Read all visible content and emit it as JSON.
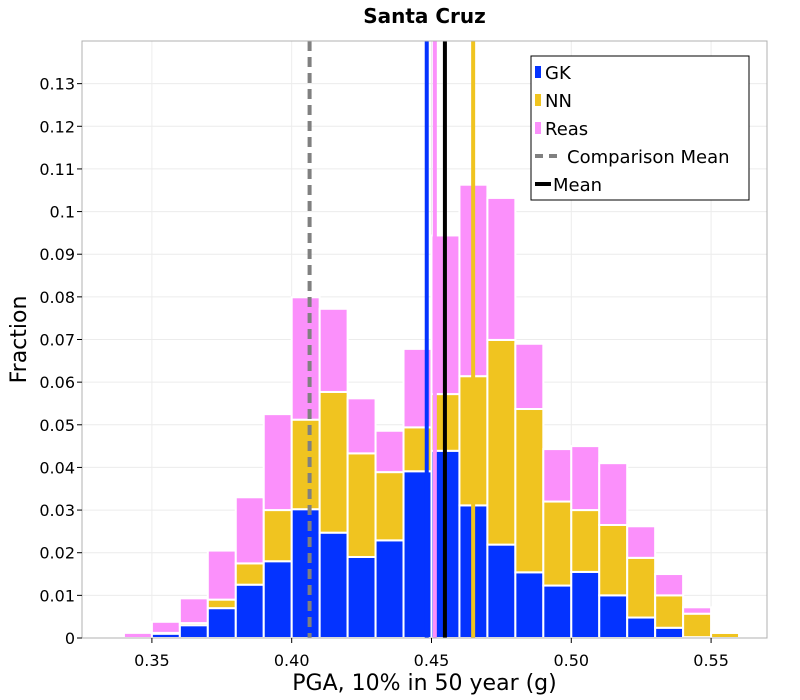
{
  "chart_data": {
    "type": "bar",
    "stacked": true,
    "title": "Santa Cruz",
    "xlabel": "PGA, 10% in 50 year (g)",
    "ylabel": "Fraction",
    "xlim": [
      0.325,
      0.57
    ],
    "ylim": [
      0,
      0.14
    ],
    "bin_width": 0.01,
    "xticks": [
      0.35,
      0.4,
      0.45,
      0.5,
      0.55
    ],
    "xtick_labels": [
      "0.35",
      "0.40",
      "0.45",
      "0.50",
      "0.55"
    ],
    "yticks": [
      0,
      0.01,
      0.02,
      0.03,
      0.04,
      0.05,
      0.06,
      0.07,
      0.08,
      0.09,
      0.1,
      0.11,
      0.12,
      0.13
    ],
    "ytick_labels": [
      "0",
      "0.01",
      "0.02",
      "0.03",
      "0.04",
      "0.05",
      "0.06",
      "0.07",
      "0.08",
      "0.09",
      "0.1",
      "0.11",
      "0.12",
      "0.13"
    ],
    "bin_starts": [
      0.33,
      0.34,
      0.35,
      0.36,
      0.37,
      0.38,
      0.39,
      0.4,
      0.41,
      0.42,
      0.43,
      0.44,
      0.45,
      0.46,
      0.47,
      0.48,
      0.49,
      0.5,
      0.51,
      0.52,
      0.53,
      0.54,
      0.55,
      0.56
    ],
    "series": [
      {
        "name": "GK",
        "color": "#0433ff",
        "values": [
          0,
          0,
          0.001,
          0.003,
          0.007,
          0.0125,
          0.018,
          0.0302,
          0.0247,
          0.019,
          0.0229,
          0.0391,
          0.0439,
          0.0311,
          0.0219,
          0.0154,
          0.0123,
          0.0155,
          0.01,
          0.0048,
          0.0024,
          0.0002,
          0,
          0
        ]
      },
      {
        "name": "NN",
        "color": "#f0c420",
        "values": [
          0,
          0,
          0.0002,
          0.0005,
          0.002,
          0.005,
          0.012,
          0.021,
          0.033,
          0.0243,
          0.016,
          0.0103,
          0.0133,
          0.0303,
          0.048,
          0.0383,
          0.0197,
          0.0145,
          0.0165,
          0.014,
          0.0076,
          0.0055,
          0.0012,
          0
        ]
      },
      {
        "name": "Reas",
        "color": "#fb90fb",
        "values": [
          0.0003,
          0.0012,
          0.0026,
          0.0058,
          0.0115,
          0.0155,
          0.0225,
          0.0287,
          0.0195,
          0.0129,
          0.0097,
          0.0184,
          0.0372,
          0.0449,
          0.0333,
          0.0153,
          0.0123,
          0.015,
          0.0145,
          0.0074,
          0.005,
          0.0015,
          0.0001,
          0.0002
        ]
      }
    ],
    "vlines": [
      {
        "name": "Comparison Mean",
        "x": 0.4064,
        "color": "#808080",
        "style": "dashed"
      },
      {
        "name": "GK mean",
        "x": 0.4483,
        "color": "#0433ff",
        "style": "solid"
      },
      {
        "name": "Reas mean",
        "x": 0.4512,
        "color": "#fb90fb",
        "style": "solid"
      },
      {
        "name": "Mean",
        "x": 0.4548,
        "color": "#000000",
        "style": "solid"
      },
      {
        "name": "NN mean",
        "x": 0.4649,
        "color": "#f0c420",
        "style": "solid"
      }
    ],
    "legend": {
      "position": "top-right",
      "entries": [
        {
          "label": "GK",
          "kind": "patch",
          "color": "#0433ff"
        },
        {
          "label": "NN",
          "kind": "patch",
          "color": "#f0c420"
        },
        {
          "label": "Reas",
          "kind": "patch",
          "color": "#fb90fb"
        },
        {
          "label": "Comparison Mean",
          "kind": "dashed-line",
          "color": "#808080"
        },
        {
          "label": "Mean",
          "kind": "solid-line",
          "color": "#000000"
        }
      ]
    },
    "grid": true
  }
}
